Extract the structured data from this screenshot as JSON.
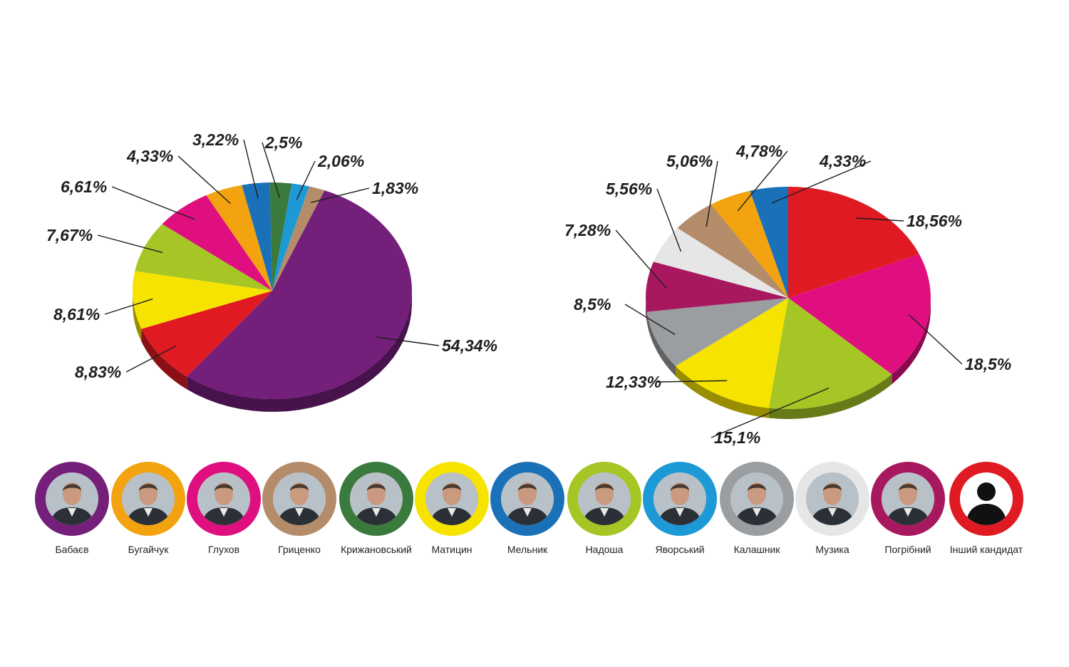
{
  "chart_data": [
    {
      "type": "pie",
      "title": "",
      "slices": [
        {
          "value": 54.34,
          "label": "54,34%",
          "color": "#741f7a"
        },
        {
          "value": 8.83,
          "label": "8,83%",
          "color": "#e01a22"
        },
        {
          "value": 8.61,
          "label": "8,61%",
          "color": "#f7e300"
        },
        {
          "value": 7.67,
          "label": "7,67%",
          "color": "#a5c625"
        },
        {
          "value": 6.61,
          "label": "6,61%",
          "color": "#e00f80"
        },
        {
          "value": 4.33,
          "label": "4,33%",
          "color": "#f2a30f"
        },
        {
          "value": 3.22,
          "label": "3,22%",
          "color": "#1a71b8"
        },
        {
          "value": 2.5,
          "label": "2,5%",
          "color": "#3a7a3c"
        },
        {
          "value": 2.06,
          "label": "2,06%",
          "color": "#1d9ad6"
        },
        {
          "value": 1.83,
          "label": "1,83%",
          "color": "#b48c6a"
        }
      ]
    },
    {
      "type": "pie",
      "title": "",
      "slices": [
        {
          "value": 18.56,
          "label": "18,56%",
          "color": "#e01a22"
        },
        {
          "value": 18.5,
          "label": "18,5%",
          "color": "#e00f80"
        },
        {
          "value": 15.1,
          "label": "15,1%",
          "color": "#a5c625"
        },
        {
          "value": 12.33,
          "label": "12,33%",
          "color": "#f7e300"
        },
        {
          "value": 8.5,
          "label": "8,5%",
          "color": "#9b9ea1"
        },
        {
          "value": 7.28,
          "label": "7,28%",
          "color": "#a8185f"
        },
        {
          "value": 5.56,
          "label": "5,56%",
          "color": "#e6e6e6"
        },
        {
          "value": 5.06,
          "label": "5,06%",
          "color": "#b48c6a"
        },
        {
          "value": 4.78,
          "label": "4,78%",
          "color": "#f2a30f"
        },
        {
          "value": 4.33,
          "label": "4,33%",
          "color": "#1a71b8"
        }
      ]
    }
  ],
  "candidates": [
    {
      "name": "Бабаєв",
      "color": "#741f7a"
    },
    {
      "name": "Бугайчук",
      "color": "#f2a30f"
    },
    {
      "name": "Глухов",
      "color": "#e00f80"
    },
    {
      "name": "Гриценко",
      "color": "#b48c6a"
    },
    {
      "name": "Крижановський",
      "color": "#3a7a3c"
    },
    {
      "name": "Матицин",
      "color": "#f7e300"
    },
    {
      "name": "Мельник",
      "color": "#1a71b8"
    },
    {
      "name": "Надоша",
      "color": "#a5c625"
    },
    {
      "name": "Яворський",
      "color": "#1d9ad6"
    },
    {
      "name": "Калашник",
      "color": "#9b9ea1"
    },
    {
      "name": "Музика",
      "color": "#e6e6e6"
    },
    {
      "name": "Погрібний",
      "color": "#a8185f"
    },
    {
      "name": "Інший кандидат",
      "color": "#e01a22"
    }
  ]
}
